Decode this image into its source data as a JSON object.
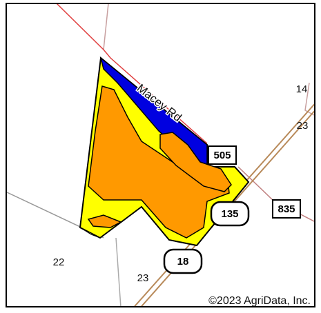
{
  "map": {
    "road_name": "Macey Rd",
    "section_labels": [
      "14",
      "23",
      "22",
      "23"
    ],
    "route_shields": [
      "505",
      "835",
      "135",
      "18"
    ],
    "copyright": "©2023 AgriData, Inc."
  }
}
